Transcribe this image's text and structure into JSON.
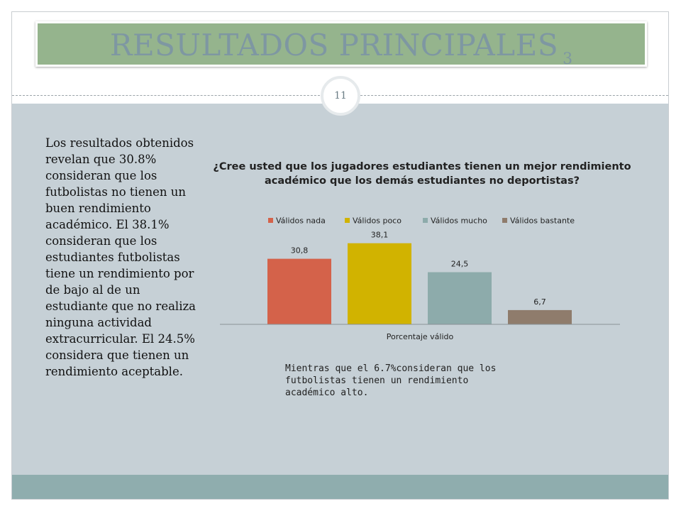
{
  "slide": {
    "title": "RESULTADOS PRINCIPALES",
    "title_suffix": "3",
    "page_number": "11",
    "left_paragraph": "Los resultados obtenidos revelan que 30.8% consideran que los futbolistas  no tienen un buen rendimiento académico. El 38.1% consideran que los estudiantes futbolistas tiene un rendimiento por de bajo al de un estudiante que no realiza ninguna actividad extracurricular. El 24.5% considera que tienen un rendimiento aceptable.",
    "note": "Mientras que el 6.7%consideran que los futbolistas tienen un rendimiento académico alto."
  },
  "colors": {
    "title_bar": "#95b48d",
    "title_text": "#7e97a2",
    "content_bg": "#c6d0d6",
    "footer_bar": "#8fadae"
  },
  "chart_data": {
    "type": "bar",
    "title": "¿Cree usted que los jugadores estudiantes tienen un mejor rendimiento académico que los demás estudiantes no deportistas?",
    "xlabel": "Porcentaje válido",
    "ylabel": "",
    "categories": [
      "Porcentaje válido"
    ],
    "series": [
      {
        "name": "Válidos nada",
        "values": [
          30.8
        ],
        "label": "30,8",
        "color": "#d4624a"
      },
      {
        "name": "Válidos poco",
        "values": [
          38.1
        ],
        "label": "38,1",
        "color": "#d1b300"
      },
      {
        "name": "Válidos mucho",
        "values": [
          24.5
        ],
        "label": "24,5",
        "color": "#8dabab"
      },
      {
        "name": "Válidos bastante",
        "values": [
          6.7
        ],
        "label": "6,7",
        "color": "#8f7c6c"
      }
    ],
    "ylim": [
      0,
      40
    ],
    "grid": false,
    "legend": "top"
  }
}
